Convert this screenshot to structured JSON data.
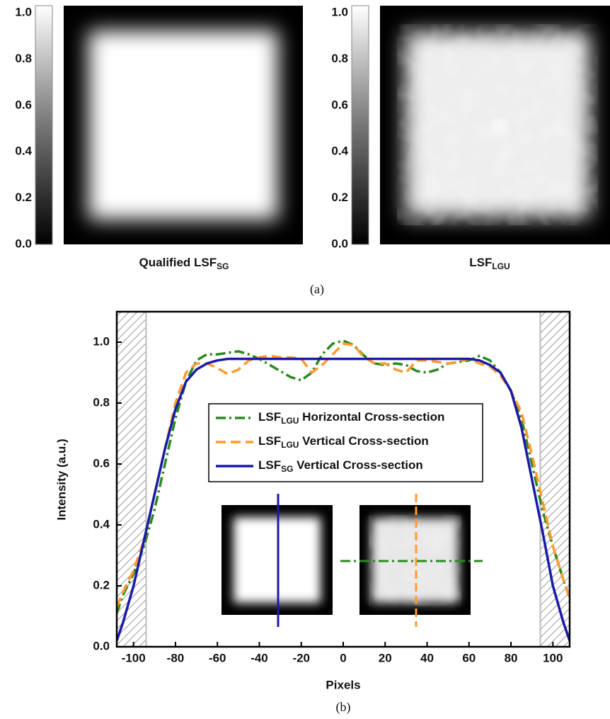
{
  "panel_a": {
    "images": [
      {
        "label": "Qualified LSF",
        "label_sub": "SG"
      },
      {
        "label": "LSF",
        "label_sub": "LGU"
      }
    ],
    "colorbar_ticks": [
      {
        "value": 0,
        "label": "0.0"
      },
      {
        "value": 0.2,
        "label": "0.2"
      },
      {
        "value": 0.4,
        "label": "0.4"
      },
      {
        "value": 0.6,
        "label": "0.6"
      },
      {
        "value": 0.8,
        "label": "0.8"
      },
      {
        "value": 1,
        "label": "1.0"
      }
    ],
    "caption": "(a)"
  },
  "chart_data": {
    "type": "line",
    "xlabel": "Pixels",
    "ylabel": "Intensity (a.u.)",
    "caption": "(b)",
    "xlim": [
      -108,
      108
    ],
    "ylim": [
      0,
      1.1
    ],
    "xticks": [
      -100,
      -80,
      -60,
      -40,
      -20,
      0,
      20,
      40,
      60,
      80,
      100
    ],
    "yticks": [
      {
        "value": 0,
        "label": "0.0"
      },
      {
        "value": 0.2,
        "label": "0.2"
      },
      {
        "value": 0.4,
        "label": "0.4"
      },
      {
        "value": 0.6,
        "label": "0.6"
      },
      {
        "value": 0.8,
        "label": "0.8"
      },
      {
        "value": 1,
        "label": "1.0"
      }
    ],
    "shaded_regions": [
      [
        -108,
        -94
      ],
      [
        94,
        108
      ]
    ],
    "x": [
      -108,
      -105,
      -100,
      -95,
      -90,
      -85,
      -80,
      -75,
      -70,
      -65,
      -60,
      -55,
      -50,
      -45,
      -40,
      -35,
      -30,
      -25,
      -20,
      -15,
      -10,
      -5,
      0,
      5,
      10,
      15,
      20,
      25,
      30,
      35,
      40,
      45,
      50,
      55,
      60,
      65,
      70,
      75,
      80,
      85,
      90,
      95,
      100,
      105,
      108
    ],
    "series": [
      {
        "name": "LSF",
        "name_sub": "LGU",
        "name_rest": " Horizontal Cross-section",
        "color": "#2a8a1e",
        "dash": "dashdot",
        "values": [
          0.11,
          0.17,
          0.24,
          0.33,
          0.45,
          0.6,
          0.75,
          0.87,
          0.94,
          0.96,
          0.96,
          0.965,
          0.97,
          0.96,
          0.945,
          0.925,
          0.905,
          0.885,
          0.875,
          0.9,
          0.96,
          0.995,
          1.005,
          0.99,
          0.955,
          0.93,
          0.925,
          0.93,
          0.925,
          0.905,
          0.9,
          0.91,
          0.93,
          0.935,
          0.94,
          0.955,
          0.94,
          0.9,
          0.84,
          0.75,
          0.6,
          0.45,
          0.33,
          0.22,
          0.16
        ]
      },
      {
        "name": "LSF",
        "name_sub": "LGU",
        "name_rest": " Vertical Cross-section",
        "color": "#ff9a2e",
        "dash": "dashed",
        "values": [
          0.13,
          0.18,
          0.25,
          0.35,
          0.5,
          0.65,
          0.8,
          0.9,
          0.93,
          0.93,
          0.915,
          0.895,
          0.91,
          0.94,
          0.95,
          0.955,
          0.95,
          0.95,
          0.945,
          0.9,
          0.925,
          0.96,
          0.995,
          0.99,
          0.95,
          0.93,
          0.93,
          0.91,
          0.9,
          0.94,
          0.94,
          0.935,
          0.93,
          0.935,
          0.945,
          0.93,
          0.92,
          0.89,
          0.84,
          0.77,
          0.63,
          0.48,
          0.33,
          0.22,
          0.16
        ]
      },
      {
        "name": "LSF",
        "name_sub": "SG",
        "name_rest": " Vertical Cross-section",
        "color": "#1a1aa6",
        "dash": "solid",
        "values": [
          0.02,
          0.08,
          0.2,
          0.35,
          0.5,
          0.65,
          0.78,
          0.87,
          0.91,
          0.93,
          0.94,
          0.945,
          0.945,
          0.945,
          0.945,
          0.945,
          0.945,
          0.945,
          0.945,
          0.945,
          0.945,
          0.945,
          0.945,
          0.945,
          0.945,
          0.945,
          0.945,
          0.945,
          0.945,
          0.945,
          0.945,
          0.945,
          0.945,
          0.945,
          0.945,
          0.94,
          0.925,
          0.9,
          0.84,
          0.72,
          0.55,
          0.38,
          0.2,
          0.08,
          0.02
        ]
      }
    ]
  }
}
